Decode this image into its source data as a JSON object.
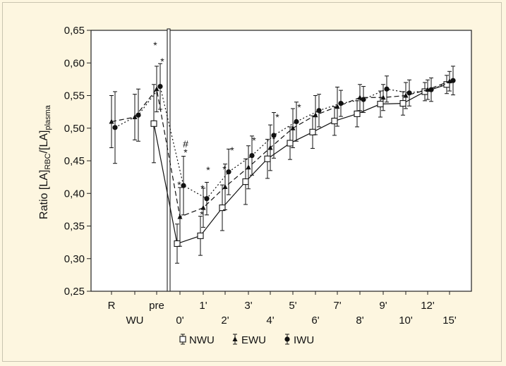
{
  "chart_data": {
    "type": "line",
    "ylabel": {
      "main": "Ratio [LA]",
      "sub1": "RBC",
      "mid": "/[LA]",
      "sub2": "plasma"
    },
    "ylim": [
      0.25,
      0.65
    ],
    "yticks": [
      "0,25",
      "0,30",
      "0,35",
      "0,40",
      "0,45",
      "0,50",
      "0,55",
      "0,60",
      "0,65"
    ],
    "x_tick_labels_upper": [
      "R",
      "pre",
      "0'",
      "2'",
      "4'",
      "6'",
      "8'",
      "10'",
      "15'"
    ],
    "x_tick_labels_lower": [
      "WU",
      "1'",
      "3'",
      "5'",
      "7'",
      "9'",
      "12'"
    ],
    "x_tick_labels_top_row": [
      "R",
      "pre",
      "1'",
      "3'",
      "5'",
      "7'",
      "9'",
      "12'"
    ],
    "x_tick_labels_bottom_row": [
      "WU",
      "0'",
      "2'",
      "4'",
      "6'",
      "8'",
      "10'",
      "15'"
    ],
    "series": [
      {
        "name": "NWU",
        "style": "solid",
        "marker": "open-square",
        "points": [
          {
            "x": "pre",
            "y": 0.507
          },
          {
            "x": "0'",
            "y": 0.323
          },
          {
            "x": "1'",
            "y": 0.335
          },
          {
            "x": "2'",
            "y": 0.378
          },
          {
            "x": "3'",
            "y": 0.418
          },
          {
            "x": "4'",
            "y": 0.453
          },
          {
            "x": "5'",
            "y": 0.477
          },
          {
            "x": "6'",
            "y": 0.494
          },
          {
            "x": "7'",
            "y": 0.511
          },
          {
            "x": "8'",
            "y": 0.522
          },
          {
            "x": "9'",
            "y": 0.537
          },
          {
            "x": "10'",
            "y": 0.538
          },
          {
            "x": "12'",
            "y": 0.556
          },
          {
            "x": "15'",
            "y": 0.567
          }
        ]
      },
      {
        "name": "EWU",
        "style": "dashed",
        "marker": "filled-triangle",
        "points": [
          {
            "x": "R",
            "y": 0.51
          },
          {
            "x": "WU",
            "y": 0.517
          },
          {
            "x": "pre",
            "y": 0.56
          },
          {
            "x": "0'",
            "y": 0.364
          },
          {
            "x": "1'",
            "y": 0.378
          },
          {
            "x": "2'",
            "y": 0.41
          },
          {
            "x": "3'",
            "y": 0.44
          },
          {
            "x": "4'",
            "y": 0.47
          },
          {
            "x": "5'",
            "y": 0.5
          },
          {
            "x": "6'",
            "y": 0.52
          },
          {
            "x": "7'",
            "y": 0.533
          },
          {
            "x": "8'",
            "y": 0.547
          },
          {
            "x": "9'",
            "y": 0.547
          },
          {
            "x": "10'",
            "y": 0.55
          },
          {
            "x": "12'",
            "y": 0.559
          },
          {
            "x": "15'",
            "y": 0.572
          }
        ]
      },
      {
        "name": "IWU",
        "style": "dotted",
        "marker": "filled-circle",
        "points": [
          {
            "x": "R",
            "y": 0.501
          },
          {
            "x": "WU",
            "y": 0.52
          },
          {
            "x": "pre",
            "y": 0.564
          },
          {
            "x": "0'",
            "y": 0.412
          },
          {
            "x": "1'",
            "y": 0.392
          },
          {
            "x": "2'",
            "y": 0.433
          },
          {
            "x": "3'",
            "y": 0.458
          },
          {
            "x": "4'",
            "y": 0.489
          },
          {
            "x": "5'",
            "y": 0.51
          },
          {
            "x": "6'",
            "y": 0.527
          },
          {
            "x": "7'",
            "y": 0.538
          },
          {
            "x": "8'",
            "y": 0.544
          },
          {
            "x": "9'",
            "y": 0.56
          },
          {
            "x": "10'",
            "y": 0.554
          },
          {
            "x": "12'",
            "y": 0.559
          },
          {
            "x": "15'",
            "y": 0.573
          }
        ]
      }
    ],
    "annotations": [
      "*",
      "*",
      "#",
      "*",
      "*",
      "*",
      "*",
      "*",
      "*",
      "*",
      "*",
      "*",
      "*",
      "*"
    ],
    "legend": [
      "NWU",
      "EWU",
      "IWU"
    ],
    "legend_position": "bottom-center",
    "grid": false
  }
}
